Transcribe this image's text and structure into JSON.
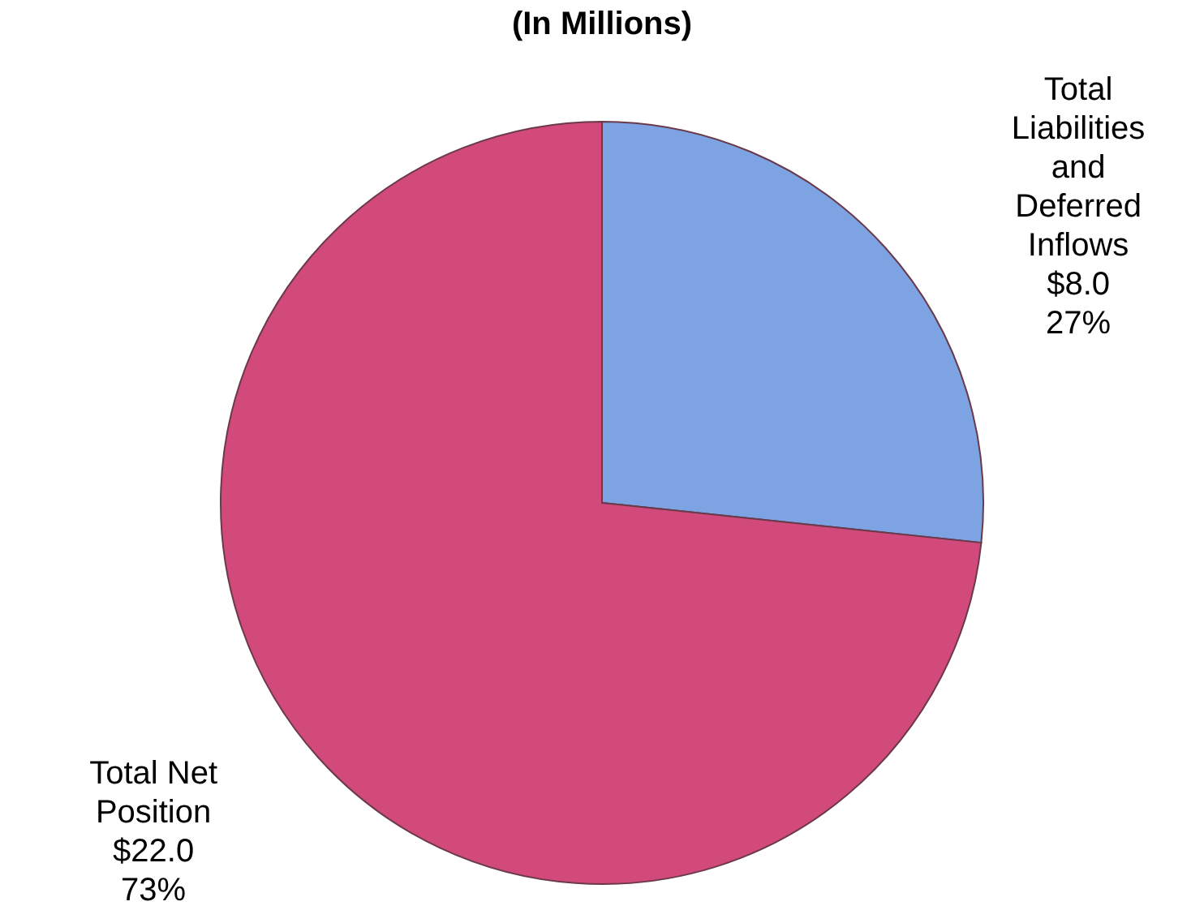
{
  "chart_data": {
    "type": "pie",
    "title": "(In Millions)",
    "categories": [
      "Total Liabilities and Deferred Inflows",
      "Total Net Position"
    ],
    "values": [
      8.0,
      22.0
    ],
    "colors": [
      "#7da3e3",
      "#d2497c"
    ],
    "value_labels": [
      "$8.0\n27%",
      "$22.0\n73%"
    ],
    "legend": false
  }
}
